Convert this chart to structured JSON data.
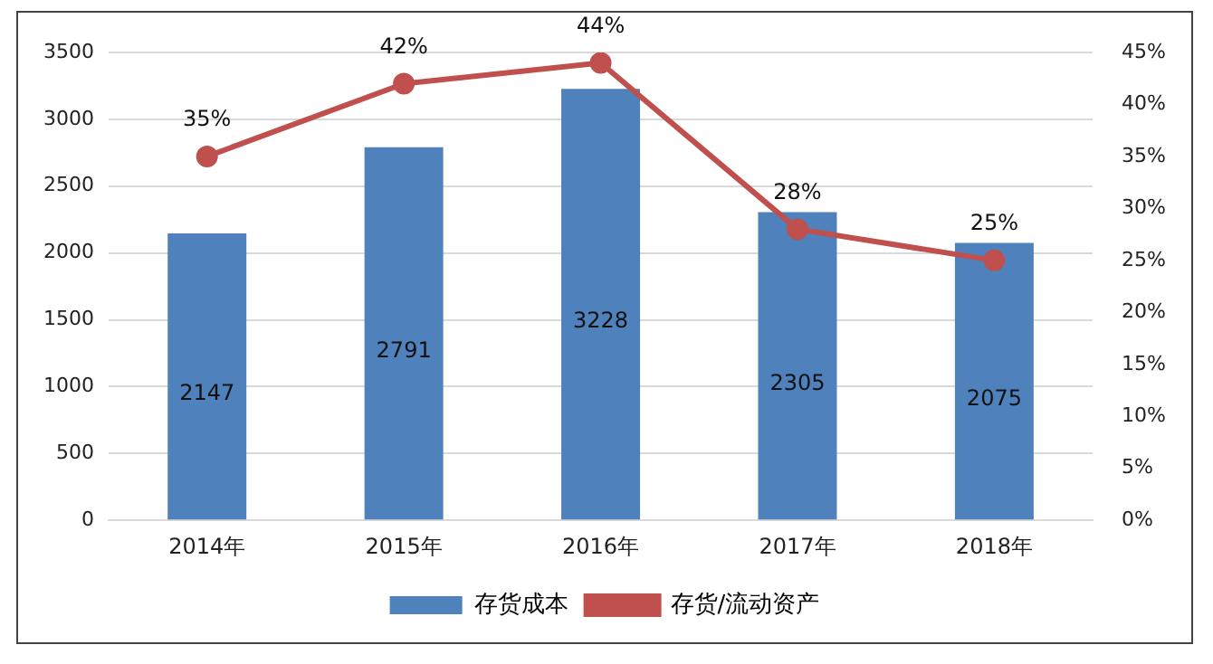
{
  "chart_data": {
    "type": "bar",
    "categories": [
      "2014年",
      "2015年",
      "2016年",
      "2017年",
      "2018年"
    ],
    "series": [
      {
        "name": "存货成本",
        "color": "#4f81bd",
        "values": [
          2147,
          2791,
          3228,
          2305,
          2075
        ],
        "value_labels": [
          "2147",
          "2791",
          "3228",
          "2305",
          "2075"
        ]
      },
      {
        "name": "存货/流动资产",
        "type": "line",
        "axis": "y2",
        "color": "#c0504d",
        "marker": "circle",
        "values": [
          35,
          42,
          44,
          28,
          25
        ],
        "value_labels": [
          "35%",
          "42%",
          "44%",
          "28%",
          "25%"
        ]
      }
    ],
    "ylim": [
      0,
      3500
    ],
    "yticks": [
      0,
      500,
      1000,
      1500,
      2000,
      2500,
      3000,
      3500
    ],
    "y2lim": [
      0,
      45
    ],
    "y2ticks": [
      {
        "value": 0,
        "label": "0%"
      },
      {
        "value": 5,
        "label": "5%"
      },
      {
        "value": 10,
        "label": "10%"
      },
      {
        "value": 15,
        "label": "15%"
      },
      {
        "value": 20,
        "label": "20%"
      },
      {
        "value": 25,
        "label": "25%"
      },
      {
        "value": 30,
        "label": "30%"
      },
      {
        "value": 35,
        "label": "35%"
      },
      {
        "value": 40,
        "label": "40%"
      },
      {
        "value": 45,
        "label": "45%"
      }
    ],
    "grid": "y",
    "legend": "bottom"
  }
}
